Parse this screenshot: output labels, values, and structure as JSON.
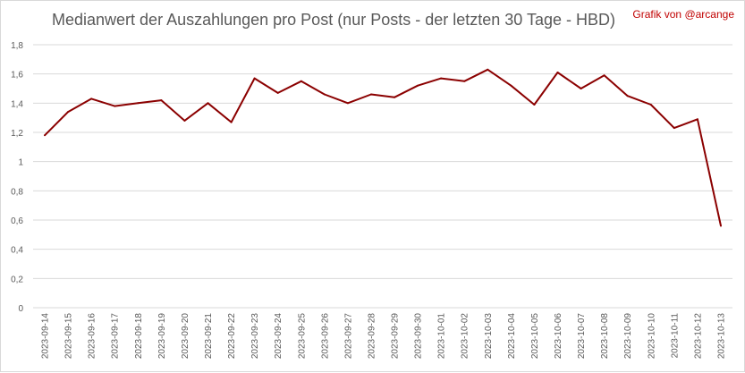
{
  "chart_data": {
    "type": "line",
    "title": "Medianwert der Auszahlungen pro Post (nur Posts - der letzten 30 Tage - HBD)",
    "credit": "Grafik von @arcange",
    "xlabel": "",
    "ylabel": "",
    "ylim": [
      0,
      1.8
    ],
    "yticks": [
      "0",
      "0,2",
      "0,4",
      "0,6",
      "0,8",
      "1",
      "1,2",
      "1,4",
      "1,6",
      "1,8"
    ],
    "grid": true,
    "legend": "none",
    "categories": [
      "2023-09-14",
      "2023-09-15",
      "2023-09-16",
      "2023-09-17",
      "2023-09-18",
      "2023-09-19",
      "2023-09-20",
      "2023-09-21",
      "2023-09-22",
      "2023-09-23",
      "2023-09-24",
      "2023-09-25",
      "2023-09-26",
      "2023-09-27",
      "2023-09-28",
      "2023-09-29",
      "2023-09-30",
      "2023-10-01",
      "2023-10-02",
      "2023-10-03",
      "2023-10-04",
      "2023-10-05",
      "2023-10-06",
      "2023-10-07",
      "2023-10-08",
      "2023-10-09",
      "2023-10-10",
      "2023-10-11",
      "2023-10-12",
      "2023-10-13"
    ],
    "series": [
      {
        "values": [
          1.18,
          1.34,
          1.43,
          1.38,
          1.4,
          1.42,
          1.28,
          1.4,
          1.27,
          1.57,
          1.47,
          1.55,
          1.46,
          1.4,
          1.46,
          1.44,
          1.52,
          1.57,
          1.55,
          1.63,
          1.52,
          1.39,
          1.61,
          1.5,
          1.59,
          1.45,
          1.39,
          1.23,
          1.29,
          0.56
        ]
      }
    ],
    "colors": {
      "line": "#8b0000",
      "credit": "#c00000",
      "grid": "#d9d9d9",
      "text": "#595959"
    }
  }
}
